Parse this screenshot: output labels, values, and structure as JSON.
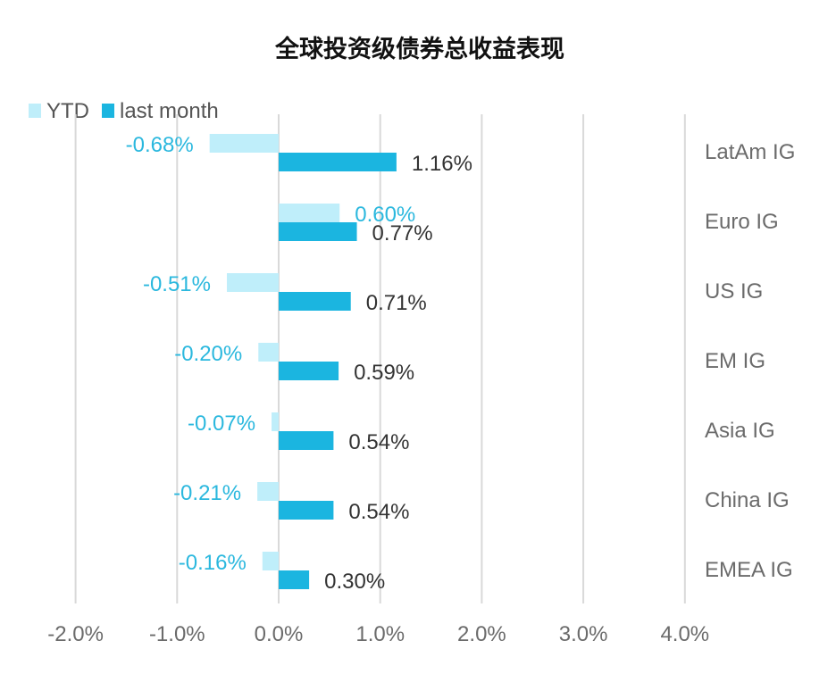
{
  "chart_data": {
    "type": "bar",
    "orientation": "horizontal",
    "title": "全球投资级债券总收益表现",
    "categories": [
      "LatAm IG",
      "Euro IG",
      "US IG",
      "EM IG",
      "Asia IG",
      "China IG",
      "EMEA IG"
    ],
    "series": [
      {
        "name": "YTD",
        "color": "#bfeefa",
        "label_color": "#2bb8de",
        "values": [
          -0.68,
          0.6,
          -0.51,
          -0.2,
          -0.07,
          -0.21,
          -0.16
        ],
        "labels": [
          "-0.68%",
          "0.60%",
          "-0.51%",
          "-0.20%",
          "-0.07%",
          "-0.21%",
          "-0.16%"
        ]
      },
      {
        "name": "last month",
        "color": "#1bb5e0",
        "label_color": "#333333",
        "values": [
          1.16,
          0.77,
          0.71,
          0.59,
          0.54,
          0.54,
          0.3
        ],
        "labels": [
          "1.16%",
          "0.77%",
          "0.71%",
          "0.59%",
          "0.54%",
          "0.54%",
          "0.30%"
        ]
      }
    ],
    "x_ticks": [
      -2.0,
      -1.0,
      0.0,
      1.0,
      2.0,
      3.0,
      4.0
    ],
    "x_tick_labels": [
      "-2.0%",
      "-1.0%",
      "0.0%",
      "1.0%",
      "2.0%",
      "3.0%",
      "4.0%"
    ],
    "xlim": [
      -2.0,
      4.0
    ],
    "grid": "vertical",
    "legend": "top-left"
  }
}
